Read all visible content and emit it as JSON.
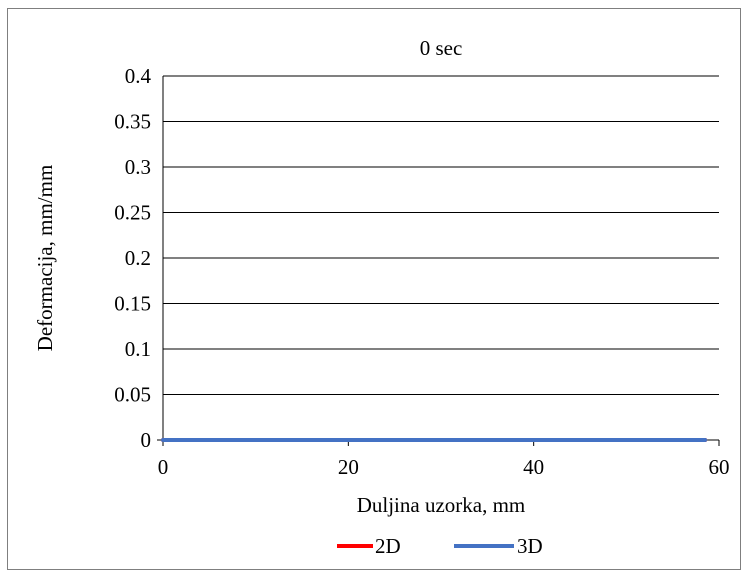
{
  "chart_data": {
    "type": "line",
    "title": "0 sec",
    "xlabel": "Duljina uzorka, mm",
    "ylabel": "Deformacija,  mm/mm",
    "xlim": [
      0,
      60
    ],
    "ylim": [
      0,
      0.4
    ],
    "x_ticks": [
      0,
      20,
      40,
      60
    ],
    "x_tick_labels": [
      "0",
      "20",
      "40",
      "60"
    ],
    "y_ticks": [
      0,
      0.05,
      0.1,
      0.15,
      0.2,
      0.25,
      0.3,
      0.35,
      0.4
    ],
    "y_tick_labels": [
      "0",
      "0.05",
      "0.1",
      "0.15",
      "0.2",
      "0.25",
      "0.3",
      "0.35",
      "0.4"
    ],
    "grid": "horizontal",
    "legend_position": "bottom",
    "series": [
      {
        "name": "2D",
        "color": "#ff0000",
        "x": [
          0,
          58.5
        ],
        "y": [
          0,
          0
        ]
      },
      {
        "name": "3D",
        "color": "#4472c4",
        "x": [
          0,
          58.5
        ],
        "y": [
          0,
          0
        ]
      }
    ]
  }
}
